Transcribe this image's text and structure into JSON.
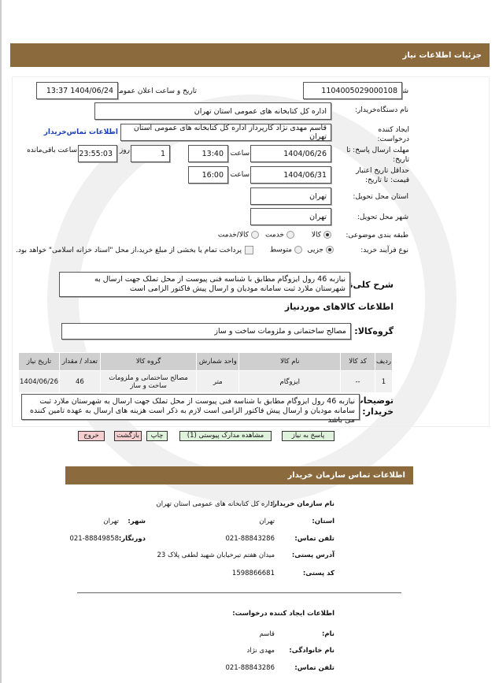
{
  "header": {
    "title": "جزئیات اطلاعات نیاز"
  },
  "form": {
    "need_number_label": "شماره نیاز:",
    "need_number": "1104005029000108",
    "announce_label": "تاریخ و ساعت اعلان عمومی:",
    "announce_value": "1404/06/24 13:37",
    "buyer_org_label": "نام دستگاه‌خریدار:",
    "buyer_org": "اداره کل  کتابخانه های عمومی استان تهران",
    "creator_label": "ایجاد کننده درخواست:",
    "creator": "قاسم مهدی نژاد کارپرداز اداره کل  کتابخانه های عمومی استان تهران",
    "contact_link": "اطلاعات تماس‌خریدار",
    "deadline_label": "مهلت ارسال پاسخ: تا تاریخ:",
    "deadline_date": "1404/06/26",
    "time_label": "ساعت",
    "deadline_time": "13:40",
    "day_label": "روز",
    "days": "1",
    "remaining": "23:55:03",
    "remaining_label": "ساعت باقی‌مانده",
    "validity_label": "حداقل تاریخ اعتبار قیمت: تا تاریخ:",
    "validity_date": "1404/06/31",
    "validity_time": "16:00",
    "province_label": "استان محل تحویل:",
    "province": "تهران",
    "city_label": "شهر محل تحویل:",
    "city": "تهران",
    "category_label": "طبقه بندی موضوعی:",
    "category_options": [
      "کالا",
      "خدمت",
      "کالا/خدمت"
    ],
    "category_selected": "کالا",
    "process_label": "نوع فرآیند خرید:",
    "process_options": [
      "جزیی",
      "متوسط"
    ],
    "process_selected": "جزیی",
    "payment_note": "پرداخت تمام یا بخشی از مبلغ خرید،از محل \"اسناد خزانه اسلامی\" خواهد بود.",
    "summary_label": "شرح کلی‌نیاز:",
    "summary": "نیازبه 46 رول ایزوگام مطابق با شناسه فنی پیوست از محل تملک جهت ارسال به شهرستان ملارد ثبت سامانه مودیان و ارسال پیش فاکتور الزامی است",
    "goods_title": "اطلاعات کالاهای موردنیاز",
    "group_label": "گروه‌کالا:",
    "group": "مصالح ساختمانی و ملزومات ساخت و ساز",
    "table": {
      "headers": [
        "ردیف",
        "کد کالا",
        "نام کالا",
        "واحد شمارش",
        "گروه کالا",
        "تعداد / مقدار",
        "تاریخ نیاز"
      ],
      "rows": [
        [
          "1",
          "--",
          "ایزوگام",
          "متر",
          "مصالح ساختمانی و ملزومات ساخت و ساز",
          "46",
          "1404/06/26"
        ]
      ]
    },
    "notes_label": "توضیحات خریدار:",
    "notes": "نیازبه 46 رول ایزوگام مطابق با شناسه فنی پیوست از محل تملک جهت ارسال به شهرستان ملارد ثبت سامانه مودیان و ارسال پیش فاکتور الزامی است لازم به ذکر است هزینه های ارسال به عهده تامین کننده می باشد"
  },
  "buttons": {
    "reply": "پاسخ به نیاز",
    "attachments": "مشاهده مدارک پیوستی (1)",
    "print": "چاپ",
    "back": "بازگشت",
    "exit": "خروج"
  },
  "contact": {
    "title": "اطلاعات تماس سازمان خریدار",
    "org_label": "نام سازمان خریدار:",
    "org": "اداره کل کتابخانه های عمومی استان تهران",
    "province_label": "استان:",
    "province": "تهران",
    "city_label": "شهر:",
    "city": "تهران",
    "phone_label": "تلفن تماس:",
    "phone": "021-88843286",
    "fax_label": "دورنگار:",
    "fax": "021-88849858",
    "address_label": "آدرس پستی:",
    "address": "میدان هفتم تیرخیابان شهید لطفی پلاک 23",
    "postal_label": "کد پستی:",
    "postal": "1598866681",
    "creator_title": "اطلاعات ایجاد کننده درخواست:",
    "first_name_label": "نام:",
    "first_name": "قاسم",
    "last_name_label": "نام خانوادگی:",
    "last_name": "مهدی نژاد",
    "creator_phone_label": "تلفن تماس:",
    "creator_phone": "021-88843286"
  }
}
